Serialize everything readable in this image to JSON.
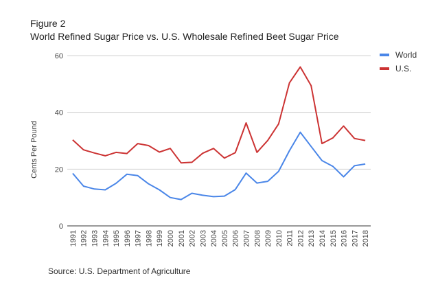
{
  "header": {
    "figure_label": "Figure 2",
    "title": "World Refined Sugar Price vs. U.S. Wholesale Refined Beet Sugar Price"
  },
  "footer": {
    "source": "Source: U.S. Department of Agriculture"
  },
  "chart_data": {
    "type": "line",
    "title": "World Refined Sugar Price vs. U.S. Wholesale Refined Beet Sugar Price",
    "xlabel": "",
    "ylabel": "Cents Per Pound",
    "ylim": [
      0,
      60
    ],
    "yticks": [
      0,
      20,
      40,
      60
    ],
    "grid": true,
    "legend_position": "right",
    "x": [
      "1991",
      "1992",
      "1993",
      "1994",
      "1995",
      "1996",
      "1997",
      "1998",
      "1999",
      "2000",
      "2001",
      "2002",
      "2003",
      "2004",
      "2005",
      "2006",
      "2007",
      "2008",
      "2009",
      "2010",
      "2011",
      "2012",
      "2013",
      "2014",
      "2015",
      "2016",
      "2017",
      "2018"
    ],
    "series": [
      {
        "name": "World",
        "color": "#4a86e8",
        "values": [
          18.5,
          14.0,
          13.0,
          12.7,
          15.0,
          18.2,
          17.7,
          14.8,
          12.7,
          10.0,
          9.3,
          11.5,
          10.8,
          10.3,
          10.5,
          12.8,
          18.6,
          15.1,
          15.7,
          19.2,
          26.5,
          33.0,
          28.0,
          23.0,
          21.0,
          17.3,
          21.2,
          21.8
        ]
      },
      {
        "name": "U.S.",
        "color": "#cc3333",
        "values": [
          30.3,
          26.8,
          25.7,
          24.7,
          25.9,
          25.5,
          29.0,
          28.3,
          26.0,
          27.3,
          22.2,
          22.4,
          25.6,
          27.3,
          23.9,
          25.8,
          36.3,
          25.9,
          30.1,
          35.9,
          50.4,
          56.0,
          49.4,
          29.0,
          31.0,
          35.2,
          30.8,
          30.1
        ]
      }
    ]
  }
}
